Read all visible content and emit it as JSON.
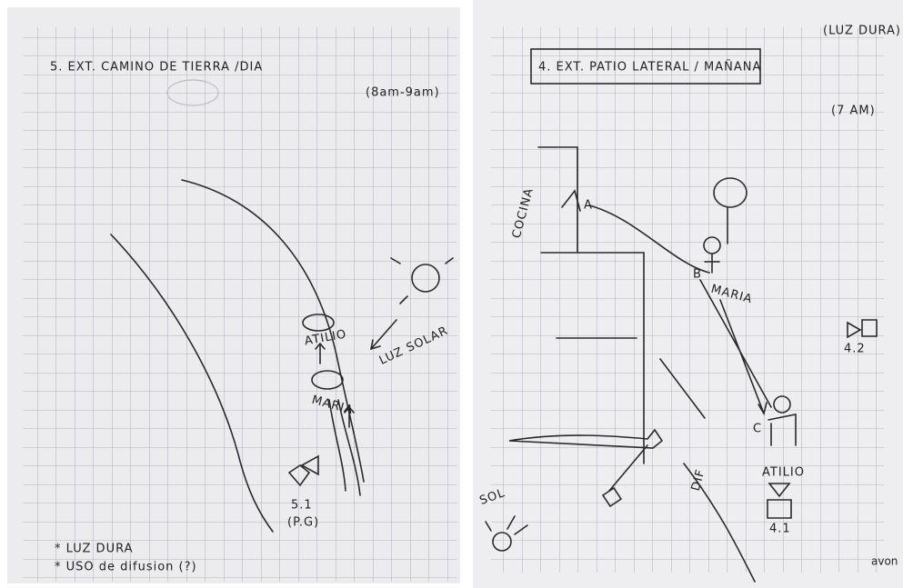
{
  "left_page": {
    "heading": "5. EXT. CAMINO DE TIERRA /DIA",
    "time": "(8am-9am)",
    "characters": [
      "ATILIO",
      "MARIA"
    ],
    "light": "LUZ SOLAR",
    "camera": "5.1",
    "camera_note": "(P.G)",
    "notes": [
      "* LUZ DURA",
      "* USO de difusion (?)"
    ]
  },
  "right_page": {
    "top_note": "(LUZ DURA)",
    "heading": "4. EXT. PATIO LATERAL / MAÑANA",
    "time": "(7 AM)",
    "room": "COCINA",
    "points": [
      "A",
      "B",
      "C"
    ],
    "characters": [
      "MARIA",
      "ATILIO"
    ],
    "cameras": [
      "4.1",
      "4.2"
    ],
    "light": "SOL",
    "diffusion": "DIF",
    "brand": "avon"
  }
}
